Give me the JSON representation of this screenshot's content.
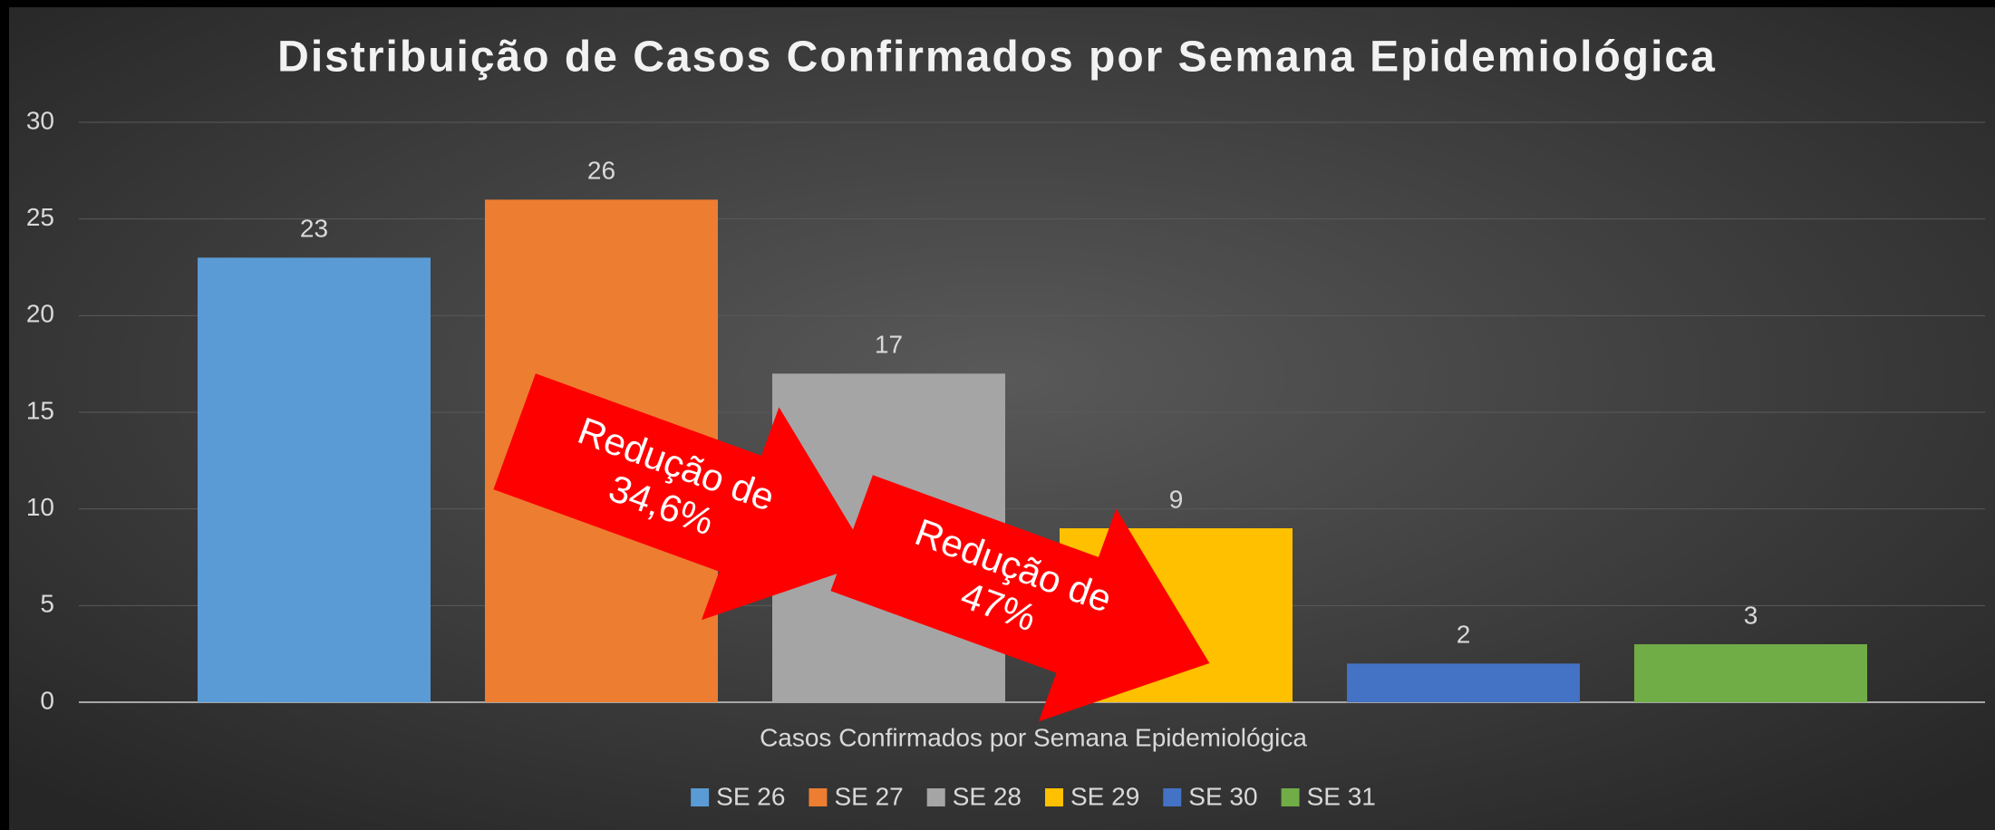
{
  "chart_data": {
    "type": "bar",
    "title": "Distribuição de Casos Confirmados por Semana Epidemiológica",
    "x_label": "Casos Confirmados por Semana Epidemiológica",
    "categories": [
      "Casos Confirmados por Semana Epidemiológica"
    ],
    "series": [
      {
        "name": "SE 26",
        "color": "#5b9bd5",
        "values": [
          23
        ]
      },
      {
        "name": "SE 27",
        "color": "#ed7d31",
        "values": [
          26
        ]
      },
      {
        "name": "SE 28",
        "color": "#a5a5a5",
        "values": [
          17
        ]
      },
      {
        "name": "SE 29",
        "color": "#ffc000",
        "values": [
          9
        ]
      },
      {
        "name": "SE 30",
        "color": "#4472c4",
        "values": [
          2
        ]
      },
      {
        "name": "SE 31",
        "color": "#70ad47",
        "values": [
          3
        ]
      }
    ],
    "ylim": [
      0,
      30
    ],
    "yticks": [
      0,
      5,
      10,
      15,
      20,
      25,
      30
    ],
    "grid": true,
    "legend": "bottom",
    "annotations": [
      {
        "lines": [
          "Redução de",
          "34,6%"
        ],
        "color": "#ff0000"
      },
      {
        "lines": [
          "Redução de",
          "47%"
        ],
        "color": "#ff0000"
      }
    ]
  }
}
